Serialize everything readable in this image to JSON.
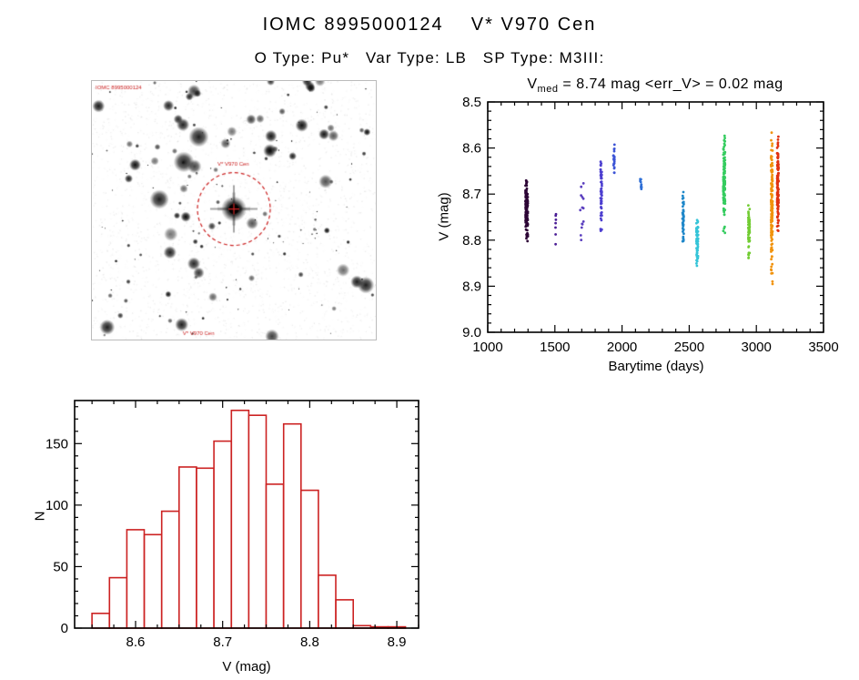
{
  "page": {
    "title": "IOMC 8995000124    V* V970 Cen",
    "subtitle": "O Type: Pu*   Var Type: LB   SP Type: M3III:"
  },
  "finder": {
    "annotation_top_left": "IOMC 8995000124",
    "annotation_center": "V* V970 Cen",
    "annotation_bottom": "V* V970 Cen",
    "circle_color": "#cc2222",
    "star_count": 160,
    "seed": 7
  },
  "chart_data": [
    {
      "type": "scatter",
      "title_parts": {
        "base": "V",
        "sub": "med",
        "rest": " = 8.74 mag <err_V> = 0.02 mag"
      },
      "xlabel": "Barytime (days)",
      "ylabel": "V (mag)",
      "xlim": [
        1000,
        3500
      ],
      "ylim": [
        8.5,
        9.0
      ],
      "y_inverted": true,
      "xticks": [
        1000,
        1500,
        2000,
        2500,
        3000,
        3500
      ],
      "xtick_labels": [
        "1000",
        "1500",
        "2000",
        "2500",
        "3000",
        "3500"
      ],
      "yticks": [
        8.5,
        8.6,
        8.7,
        8.8,
        8.9,
        9.0
      ],
      "ytick_labels": [
        "8.5",
        "8.6",
        "8.7",
        "8.8",
        "8.9",
        "9.0"
      ],
      "median_v_mag": 8.74,
      "err_v_mag": 0.02,
      "clusters": [
        {
          "x": 1290,
          "xspread": 18,
          "ymean": 8.735,
          "ysigma": 0.028,
          "ymin": 8.67,
          "ymax": 8.805,
          "n": 130,
          "color": "#2d0636"
        },
        {
          "x": 1505,
          "xspread": 8,
          "ymean": 8.775,
          "ysigma": 0.022,
          "ymin": 8.74,
          "ymax": 8.81,
          "n": 7,
          "color": "#4b1d95"
        },
        {
          "x": 1700,
          "xspread": 26,
          "ymean": 8.75,
          "ysigma": 0.04,
          "ymin": 8.65,
          "ymax": 8.81,
          "n": 14,
          "color": "#5b3fbf"
        },
        {
          "x": 1845,
          "xspread": 10,
          "ymean": 8.7,
          "ysigma": 0.04,
          "ymin": 8.615,
          "ymax": 8.785,
          "n": 55,
          "color": "#4d3fd0"
        },
        {
          "x": 1940,
          "xspread": 10,
          "ymean": 8.625,
          "ysigma": 0.02,
          "ymin": 8.575,
          "ymax": 8.67,
          "n": 22,
          "color": "#3d55d6"
        },
        {
          "x": 2140,
          "xspread": 12,
          "ymean": 8.68,
          "ysigma": 0.009,
          "ymin": 8.66,
          "ymax": 8.7,
          "n": 9,
          "color": "#2f6fd6"
        },
        {
          "x": 2455,
          "xspread": 10,
          "ymean": 8.75,
          "ysigma": 0.028,
          "ymin": 8.69,
          "ymax": 8.81,
          "n": 45,
          "color": "#1e87c9"
        },
        {
          "x": 2560,
          "xspread": 14,
          "ymean": 8.8,
          "ysigma": 0.03,
          "ymin": 8.735,
          "ymax": 8.875,
          "n": 70,
          "color": "#35c4d8"
        },
        {
          "x": 2760,
          "xspread": 14,
          "ymean": 8.67,
          "ysigma": 0.05,
          "ymin": 8.565,
          "ymax": 8.785,
          "n": 120,
          "color": "#35cc5f"
        },
        {
          "x": 2945,
          "xspread": 12,
          "ymean": 8.785,
          "ysigma": 0.032,
          "ymin": 8.715,
          "ymax": 8.865,
          "n": 55,
          "color": "#72cc33"
        },
        {
          "x": 3115,
          "xspread": 12,
          "ymean": 8.73,
          "ysigma": 0.07,
          "ymin": 8.565,
          "ymax": 8.915,
          "n": 140,
          "color": "#f1930d"
        },
        {
          "x": 3160,
          "xspread": 10,
          "ymean": 8.69,
          "ysigma": 0.05,
          "ymin": 8.56,
          "ymax": 8.805,
          "n": 130,
          "color": "#e03210"
        }
      ]
    },
    {
      "type": "histogram",
      "xlabel": "V (mag)",
      "ylabel": "N",
      "bin_start": 8.55,
      "bin_width": 0.02,
      "counts": [
        12,
        41,
        80,
        76,
        95,
        131,
        130,
        152,
        177,
        173,
        117,
        166,
        112,
        43,
        23,
        2,
        1,
        1
      ],
      "xlim": [
        8.53,
        8.925
      ],
      "ylim": [
        0,
        185
      ],
      "xticks": [
        8.6,
        8.7,
        8.8,
        8.9
      ],
      "xtick_labels": [
        "8.6",
        "8.7",
        "8.8",
        "8.9"
      ],
      "yticks": [
        0,
        50,
        100,
        150
      ],
      "ytick_labels": [
        "0",
        "50",
        "100",
        "150"
      ],
      "bar_color": "#cc2222"
    }
  ]
}
